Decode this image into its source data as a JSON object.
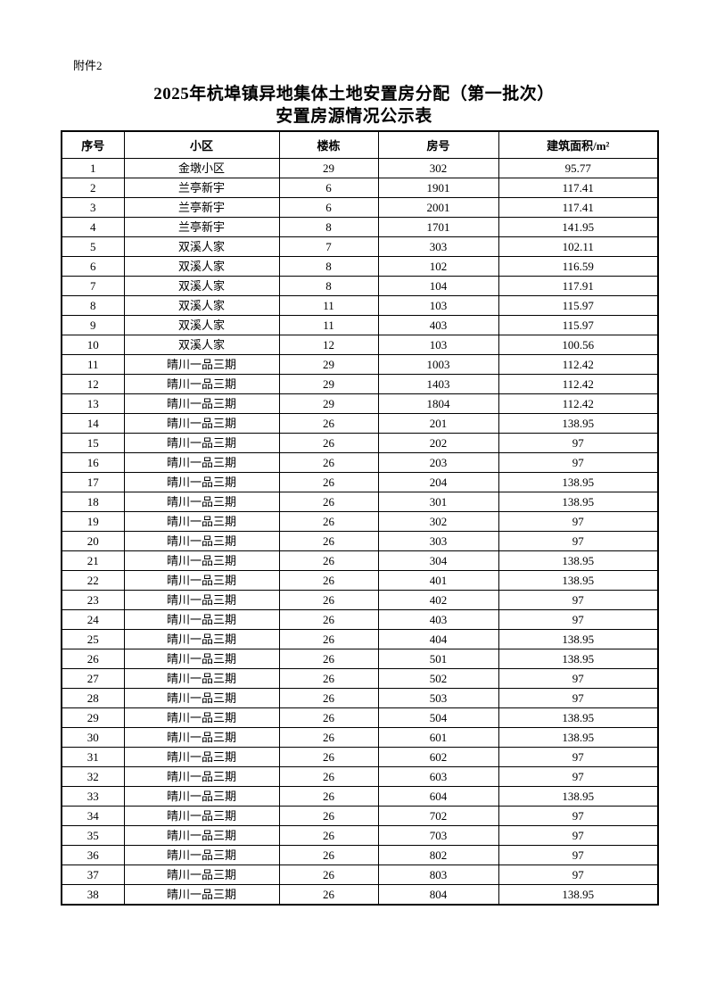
{
  "page": {
    "attachment_label": "附件2",
    "title_line1": "2025年杭埠镇异地集体土地安置房分配（第一批次）",
    "title_line2": "安置房源情况公示表"
  },
  "table": {
    "columns": [
      "序号",
      "小区",
      "楼栋",
      "房号",
      "建筑面积/m²"
    ],
    "rows": [
      [
        "1",
        "金墩小区",
        "29",
        "302",
        "95.77"
      ],
      [
        "2",
        "兰亭新宇",
        "6",
        "1901",
        "117.41"
      ],
      [
        "3",
        "兰亭新宇",
        "6",
        "2001",
        "117.41"
      ],
      [
        "4",
        "兰亭新宇",
        "8",
        "1701",
        "141.95"
      ],
      [
        "5",
        "双溪人家",
        "7",
        "303",
        "102.11"
      ],
      [
        "6",
        "双溪人家",
        "8",
        "102",
        "116.59"
      ],
      [
        "7",
        "双溪人家",
        "8",
        "104",
        "117.91"
      ],
      [
        "8",
        "双溪人家",
        "11",
        "103",
        "115.97"
      ],
      [
        "9",
        "双溪人家",
        "11",
        "403",
        "115.97"
      ],
      [
        "10",
        "双溪人家",
        "12",
        "103",
        "100.56"
      ],
      [
        "11",
        "晴川一品三期",
        "29",
        "1003",
        "112.42"
      ],
      [
        "12",
        "晴川一品三期",
        "29",
        "1403",
        "112.42"
      ],
      [
        "13",
        "晴川一品三期",
        "29",
        "1804",
        "112.42"
      ],
      [
        "14",
        "晴川一品三期",
        "26",
        "201",
        "138.95"
      ],
      [
        "15",
        "晴川一品三期",
        "26",
        "202",
        "97"
      ],
      [
        "16",
        "晴川一品三期",
        "26",
        "203",
        "97"
      ],
      [
        "17",
        "晴川一品三期",
        "26",
        "204",
        "138.95"
      ],
      [
        "18",
        "晴川一品三期",
        "26",
        "301",
        "138.95"
      ],
      [
        "19",
        "晴川一品三期",
        "26",
        "302",
        "97"
      ],
      [
        "20",
        "晴川一品三期",
        "26",
        "303",
        "97"
      ],
      [
        "21",
        "晴川一品三期",
        "26",
        "304",
        "138.95"
      ],
      [
        "22",
        "晴川一品三期",
        "26",
        "401",
        "138.95"
      ],
      [
        "23",
        "晴川一品三期",
        "26",
        "402",
        "97"
      ],
      [
        "24",
        "晴川一品三期",
        "26",
        "403",
        "97"
      ],
      [
        "25",
        "晴川一品三期",
        "26",
        "404",
        "138.95"
      ],
      [
        "26",
        "晴川一品三期",
        "26",
        "501",
        "138.95"
      ],
      [
        "27",
        "晴川一品三期",
        "26",
        "502",
        "97"
      ],
      [
        "28",
        "晴川一品三期",
        "26",
        "503",
        "97"
      ],
      [
        "29",
        "晴川一品三期",
        "26",
        "504",
        "138.95"
      ],
      [
        "30",
        "晴川一品三期",
        "26",
        "601",
        "138.95"
      ],
      [
        "31",
        "晴川一品三期",
        "26",
        "602",
        "97"
      ],
      [
        "32",
        "晴川一品三期",
        "26",
        "603",
        "97"
      ],
      [
        "33",
        "晴川一品三期",
        "26",
        "604",
        "138.95"
      ],
      [
        "34",
        "晴川一品三期",
        "26",
        "702",
        "97"
      ],
      [
        "35",
        "晴川一品三期",
        "26",
        "703",
        "97"
      ],
      [
        "36",
        "晴川一品三期",
        "26",
        "802",
        "97"
      ],
      [
        "37",
        "晴川一品三期",
        "26",
        "803",
        "97"
      ],
      [
        "38",
        "晴川一品三期",
        "26",
        "804",
        "138.95"
      ]
    ]
  }
}
